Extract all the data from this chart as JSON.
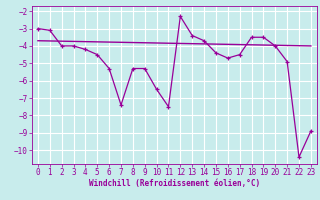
{
  "title": "",
  "xlabel": "Windchill (Refroidissement éolien,°C)",
  "ylabel": "",
  "bg_color": "#c8ecec",
  "line_color": "#990099",
  "grid_color": "#ffffff",
  "xlim": [
    -0.5,
    23.5
  ],
  "ylim": [
    -10.8,
    -1.7
  ],
  "yticks": [
    -10,
    -9,
    -8,
    -7,
    -6,
    -5,
    -4,
    -3,
    -2
  ],
  "xticks": [
    0,
    1,
    2,
    3,
    4,
    5,
    6,
    7,
    8,
    9,
    10,
    11,
    12,
    13,
    14,
    15,
    16,
    17,
    18,
    19,
    20,
    21,
    22,
    23
  ],
  "data_x": [
    0,
    1,
    2,
    3,
    4,
    5,
    6,
    7,
    8,
    9,
    10,
    11,
    12,
    13,
    14,
    15,
    16,
    17,
    18,
    19,
    20,
    21,
    22,
    23
  ],
  "data_y": [
    -3.0,
    -3.1,
    -4.0,
    -4.0,
    -4.2,
    -4.5,
    -5.3,
    -7.4,
    -5.3,
    -5.3,
    -6.5,
    -7.5,
    -2.3,
    -3.4,
    -3.7,
    -4.4,
    -4.7,
    -4.5,
    -3.5,
    -3.5,
    -4.0,
    -4.9,
    -10.4,
    -8.9
  ],
  "trend_x": [
    0,
    23
  ],
  "trend_y": [
    -3.7,
    -4.0
  ],
  "tick_fontsize": 5.5,
  "xlabel_fontsize": 5.5
}
